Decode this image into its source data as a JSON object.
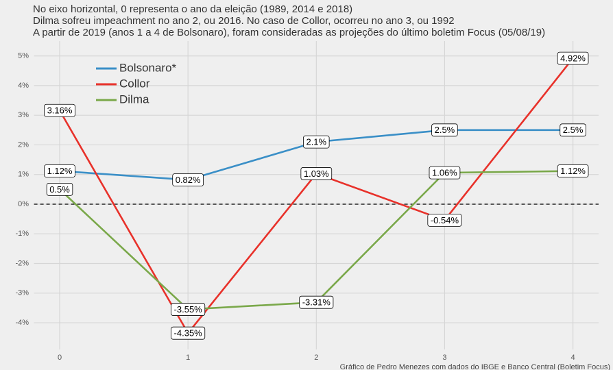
{
  "chart_data": {
    "type": "line",
    "subtitle": [
      "No eixo horizontal, 0 representa o ano da eleição (1989, 2014 e 2018)",
      "Dilma sofreu impeachment no ano 2, ou 2016. No caso de Collor, ocorreu no ano 3, ou 1992",
      "A partir de 2019 (anos 1 a 4 de Bolsonaro), foram consideradas as projeções do último boletim Focus (05/08/19)"
    ],
    "caption": "Gráfico de Pedro Menezes com dados do IBGE e Banco Central (Boletim Focus)",
    "x": [
      0,
      1,
      2,
      3,
      4
    ],
    "series": [
      {
        "name": "Bolsonaro*",
        "color": "#3a8fc7",
        "values": [
          1.12,
          0.82,
          2.1,
          2.5,
          2.5
        ],
        "value_labels": [
          "1.12%",
          "0.82%",
          "2.1%",
          "2.5%",
          "2.5%"
        ]
      },
      {
        "name": "Collor",
        "color": "#e8312a",
        "values": [
          3.16,
          -4.35,
          1.03,
          -0.54,
          4.92
        ],
        "value_labels": [
          "3.16%",
          "-4.35%",
          "1.03%",
          "-0.54%",
          "4.92%"
        ]
      },
      {
        "name": "Dilma",
        "color": "#7aa84a",
        "values": [
          0.5,
          -3.55,
          -3.31,
          1.06,
          1.12
        ],
        "value_labels": [
          "0.5%",
          "-3.55%",
          "-3.31%",
          "1.06%",
          "1.12%"
        ]
      }
    ],
    "xlim": [
      -0.2,
      4.2
    ],
    "xticks": [
      0,
      1,
      2,
      3,
      4
    ],
    "ylim": [
      -4.9,
      5.5
    ],
    "yticks": [
      {
        "value": -4,
        "label": "-4%"
      },
      {
        "value": -3,
        "label": "-3%"
      },
      {
        "value": -2,
        "label": "-2%"
      },
      {
        "value": -1,
        "label": "-1%"
      },
      {
        "value": 0,
        "label": "0%"
      },
      {
        "value": 1,
        "label": "1%"
      },
      {
        "value": 2,
        "label": "2%"
      },
      {
        "value": 3,
        "label": "3%"
      },
      {
        "value": 4,
        "label": "4%"
      },
      {
        "value": 5,
        "label": "5%"
      }
    ],
    "hline": 0,
    "grid": true,
    "legend": "top-left"
  }
}
